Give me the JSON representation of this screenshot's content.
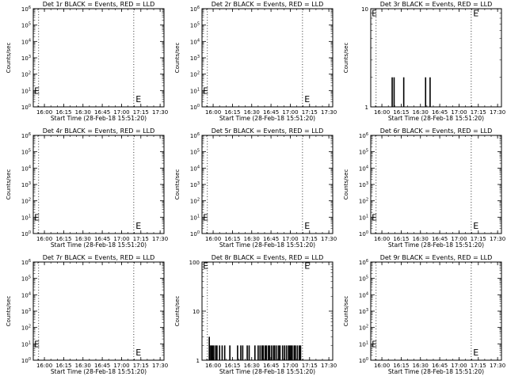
{
  "chart_data": [
    {
      "type": "line",
      "title": "Det 1r BLACK = Events, RED = LLD",
      "xlabel": "Start Time (28-Feb-18 15:51:20)",
      "ylabel": "Counts/sec",
      "scale": "log",
      "ylim": [
        1,
        1000000
      ],
      "xlim": [
        "15:51:20",
        "17:33:00"
      ],
      "x_ticks": [
        "16:00",
        "16:15",
        "16:30",
        "16:45",
        "17:00",
        "17:15",
        "17:30"
      ],
      "y_ticks": [
        "10^0",
        "10^1",
        "10^2",
        "10^3",
        "10^4",
        "10^5",
        "10^6"
      ],
      "markers": [
        "15:55:30",
        "17:09:30"
      ],
      "e_labels": [
        {
          "text": "E",
          "x": "15:52:00",
          "y": 10
        },
        {
          "text": "E",
          "x": "17:11:00",
          "y": 3
        }
      ],
      "series": [
        {
          "values": []
        }
      ]
    },
    {
      "type": "line",
      "title": "Det 2r BLACK = Events, RED = LLD",
      "xlabel": "Start Time (28-Feb-18 15:51:20)",
      "ylabel": "Counts/sec",
      "scale": "log",
      "ylim": [
        1,
        1000000
      ],
      "xlim": [
        "15:51:20",
        "17:33:00"
      ],
      "x_ticks": [
        "16:00",
        "16:15",
        "16:30",
        "16:45",
        "17:00",
        "17:15",
        "17:30"
      ],
      "y_ticks": [
        "10^0",
        "10^1",
        "10^2",
        "10^3",
        "10^4",
        "10^5",
        "10^6"
      ],
      "markers": [
        "15:55:30",
        "17:09:30"
      ],
      "e_labels": [
        {
          "text": "E",
          "x": "15:52:00",
          "y": 10
        },
        {
          "text": "E",
          "x": "17:11:00",
          "y": 3
        }
      ],
      "series": [
        {
          "values": []
        }
      ]
    },
    {
      "type": "line",
      "title": "Det 3r BLACK = Events, RED = LLD",
      "xlabel": "Start Time (28-Feb-18 15:51:20)",
      "ylabel": "Counts/sec",
      "scale": "log",
      "ylim": [
        1,
        10
      ],
      "xlim": [
        "15:51:20",
        "17:33:00"
      ],
      "x_ticks": [
        "16:00",
        "16:15",
        "16:30",
        "16:45",
        "17:00",
        "17:15",
        "17:30"
      ],
      "y_ticks": [
        "1",
        "10"
      ],
      "markers": [
        "15:55:30",
        "17:09:30"
      ],
      "e_labels": [
        {
          "text": "E",
          "x": "15:52:00",
          "y": 9
        },
        {
          "text": "E",
          "x": "17:11:00",
          "y": 9
        }
      ],
      "series": [
        {
          "values": [
            [
              "16:08:00",
              2
            ],
            [
              "16:09:30",
              2
            ],
            [
              "16:17:00",
              2
            ],
            [
              "16:34:00",
              2
            ],
            [
              "16:37:30",
              2
            ]
          ]
        }
      ]
    },
    {
      "type": "line",
      "title": "Det 4r BLACK = Events, RED = LLD",
      "xlabel": "Start Time (28-Feb-18 15:51:20)",
      "ylabel": "Counts/sec",
      "scale": "log",
      "ylim": [
        1,
        1000000
      ],
      "xlim": [
        "15:51:20",
        "17:33:00"
      ],
      "x_ticks": [
        "16:00",
        "16:15",
        "16:30",
        "16:45",
        "17:00",
        "17:15",
        "17:30"
      ],
      "y_ticks": [
        "10^0",
        "10^1",
        "10^2",
        "10^3",
        "10^4",
        "10^5",
        "10^6"
      ],
      "markers": [
        "15:55:30",
        "17:09:30"
      ],
      "e_labels": [
        {
          "text": "E",
          "x": "15:52:00",
          "y": 10
        },
        {
          "text": "E",
          "x": "17:11:00",
          "y": 3
        }
      ],
      "series": [
        {
          "values": []
        }
      ]
    },
    {
      "type": "line",
      "title": "Det 5r BLACK = Events, RED = LLD",
      "xlabel": "Start Time (28-Feb-18 15:51:20)",
      "ylabel": "Counts/sec",
      "scale": "log",
      "ylim": [
        1,
        1000000
      ],
      "xlim": [
        "15:51:20",
        "17:33:00"
      ],
      "x_ticks": [
        "16:00",
        "16:15",
        "16:30",
        "16:45",
        "17:00",
        "17:15",
        "17:30"
      ],
      "y_ticks": [
        "10^0",
        "10^1",
        "10^2",
        "10^3",
        "10^4",
        "10^5",
        "10^6"
      ],
      "markers": [
        "15:55:30",
        "17:09:30"
      ],
      "e_labels": [
        {
          "text": "E",
          "x": "15:52:00",
          "y": 10
        },
        {
          "text": "E",
          "x": "17:11:00",
          "y": 3
        }
      ],
      "series": [
        {
          "values": []
        }
      ]
    },
    {
      "type": "line",
      "title": "Det 6r BLACK = Events, RED = LLD",
      "xlabel": "Start Time (28-Feb-18 15:51:20)",
      "ylabel": "Counts/sec",
      "scale": "log",
      "ylim": [
        1,
        1000000
      ],
      "xlim": [
        "15:51:20",
        "17:33:00"
      ],
      "x_ticks": [
        "16:00",
        "16:15",
        "16:30",
        "16:45",
        "17:00",
        "17:15",
        "17:30"
      ],
      "y_ticks": [
        "10^0",
        "10^1",
        "10^2",
        "10^3",
        "10^4",
        "10^5",
        "10^6"
      ],
      "markers": [
        "15:55:30",
        "17:09:30"
      ],
      "e_labels": [
        {
          "text": "E",
          "x": "15:52:00",
          "y": 10
        },
        {
          "text": "E",
          "x": "17:11:00",
          "y": 3
        }
      ],
      "series": [
        {
          "values": []
        }
      ]
    },
    {
      "type": "line",
      "title": "Det 7r BLACK = Events, RED = LLD",
      "xlabel": "Start Time (28-Feb-18 15:51:20)",
      "ylabel": "Counts/sec",
      "scale": "log",
      "ylim": [
        1,
        1000000
      ],
      "xlim": [
        "15:51:20",
        "17:33:00"
      ],
      "x_ticks": [
        "16:00",
        "16:15",
        "16:30",
        "16:45",
        "17:00",
        "17:15",
        "17:30"
      ],
      "y_ticks": [
        "10^0",
        "10^1",
        "10^2",
        "10^3",
        "10^4",
        "10^5",
        "10^6"
      ],
      "markers": [
        "15:55:30",
        "17:09:30"
      ],
      "e_labels": [
        {
          "text": "E",
          "x": "15:52:00",
          "y": 10
        },
        {
          "text": "E",
          "x": "17:11:00",
          "y": 3
        }
      ],
      "series": [
        {
          "values": []
        }
      ]
    },
    {
      "type": "line",
      "title": "Det 8r BLACK = Events, RED = LLD",
      "xlabel": "Start Time (28-Feb-18 15:51:20)",
      "ylabel": "Counts/sec",
      "scale": "log",
      "ylim": [
        1,
        100
      ],
      "xlim": [
        "15:51:20",
        "17:33:00"
      ],
      "x_ticks": [
        "16:00",
        "16:15",
        "16:30",
        "16:45",
        "17:00",
        "17:15",
        "17:30"
      ],
      "y_ticks": [
        "1",
        "10",
        "100"
      ],
      "markers": [
        "15:55:30",
        "17:09:30"
      ],
      "e_labels": [
        {
          "text": "E",
          "x": "15:52:00",
          "y": 85
        },
        {
          "text": "E",
          "x": "17:11:00",
          "y": 85
        }
      ],
      "series": [
        {
          "values": [
            [
              "15:57:00",
              3
            ],
            [
              "15:57:30",
              2
            ],
            [
              "15:58:30",
              2
            ],
            [
              "15:59:30",
              2
            ],
            [
              "16:00:30",
              2
            ],
            [
              "16:02:00",
              2
            ],
            [
              "16:03:00",
              2
            ],
            [
              "16:05:00",
              2
            ],
            [
              "16:07:00",
              2
            ],
            [
              "16:09:00",
              2
            ],
            [
              "16:13:00",
              2
            ],
            [
              "16:19:00",
              2
            ],
            [
              "16:21:30",
              2
            ],
            [
              "16:23:00",
              2
            ],
            [
              "16:26:30",
              2
            ],
            [
              "16:28:00",
              2
            ],
            [
              "16:32:30",
              2
            ],
            [
              "16:35:00",
              2
            ],
            [
              "16:36:30",
              2
            ],
            [
              "16:38:00",
              2
            ],
            [
              "16:39:00",
              2
            ],
            [
              "16:40:30",
              2
            ],
            [
              "16:41:30",
              2
            ],
            [
              "16:43:00",
              2
            ],
            [
              "16:44:00",
              2
            ],
            [
              "16:45:30",
              2
            ],
            [
              "16:47:00",
              2
            ],
            [
              "16:48:00",
              2
            ],
            [
              "16:49:30",
              2
            ],
            [
              "16:51:00",
              2
            ],
            [
              "16:52:00",
              2
            ],
            [
              "16:54:00",
              2
            ],
            [
              "16:55:30",
              2
            ],
            [
              "16:57:00",
              2
            ],
            [
              "16:58:30",
              2
            ],
            [
              "16:59:30",
              2
            ],
            [
              "17:00:30",
              2
            ],
            [
              "17:01:30",
              2
            ],
            [
              "17:03:00",
              2
            ],
            [
              "17:04:00",
              2
            ],
            [
              "17:05:30",
              2
            ],
            [
              "17:07:00",
              2
            ],
            [
              "17:08:00",
              2
            ]
          ]
        }
      ]
    },
    {
      "type": "line",
      "title": "Det 9r BLACK = Events, RED = LLD",
      "xlabel": "Start Time (28-Feb-18 15:51:20)",
      "ylabel": "Counts/sec",
      "scale": "log",
      "ylim": [
        1,
        1000000
      ],
      "xlim": [
        "15:51:20",
        "17:33:00"
      ],
      "x_ticks": [
        "16:00",
        "16:15",
        "16:30",
        "16:45",
        "17:00",
        "17:15",
        "17:30"
      ],
      "y_ticks": [
        "10^0",
        "10^1",
        "10^2",
        "10^3",
        "10^4",
        "10^5",
        "10^6"
      ],
      "markers": [
        "15:55:30",
        "17:09:30"
      ],
      "e_labels": [
        {
          "text": "E",
          "x": "15:52:00",
          "y": 10
        },
        {
          "text": "E",
          "x": "17:11:00",
          "y": 3
        }
      ],
      "series": [
        {
          "values": []
        }
      ]
    }
  ]
}
